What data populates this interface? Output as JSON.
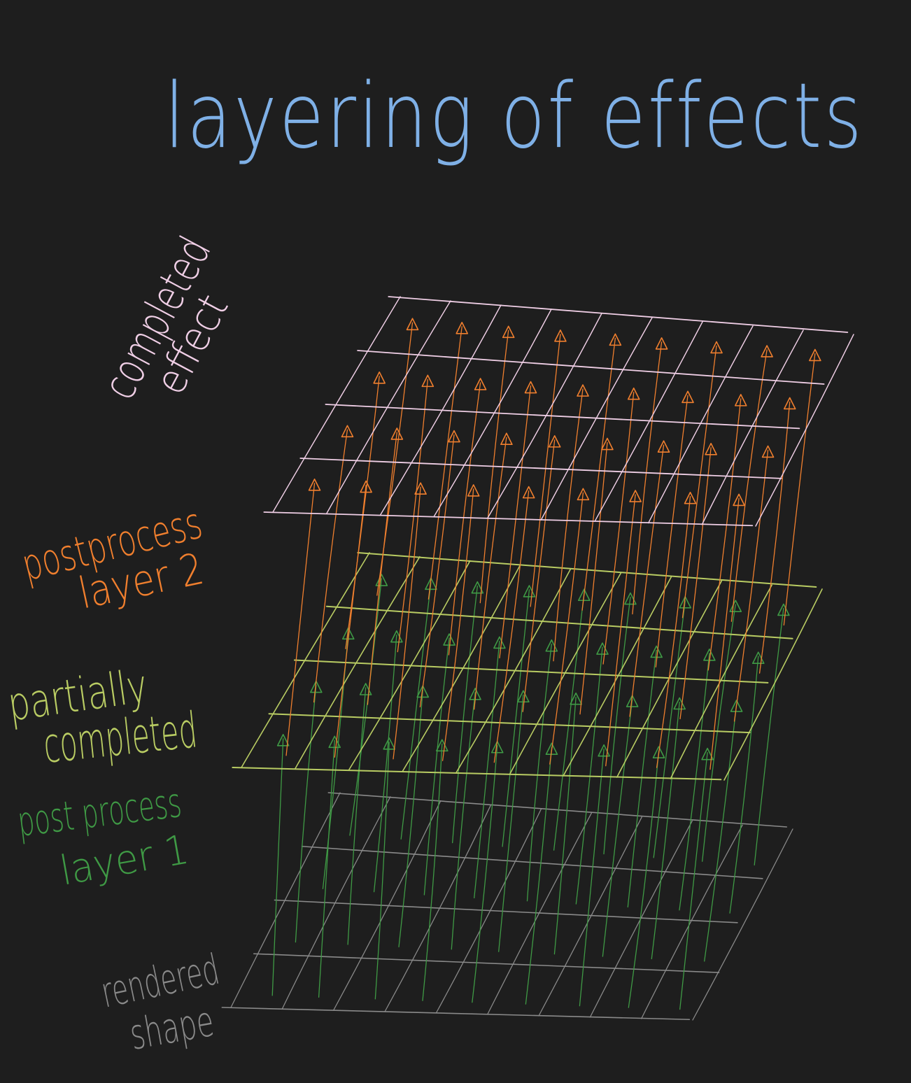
{
  "diagram": {
    "title": "layering of effects",
    "layers": [
      {
        "id": "completed",
        "label_lines": [
          "completed",
          "effect"
        ],
        "color": "#f0cfe6",
        "kind": "plane"
      },
      {
        "id": "post2",
        "label_lines": [
          "postprocess",
          "layer 2"
        ],
        "color": "#f07f2e",
        "kind": "arrows"
      },
      {
        "id": "partial",
        "label_lines": [
          "partially",
          "completed"
        ],
        "color": "#b9cc63",
        "kind": "plane"
      },
      {
        "id": "post1",
        "label_lines": [
          "post process",
          "layer 1"
        ],
        "color": "#3f9a45",
        "kind": "arrows"
      },
      {
        "id": "rendered",
        "label_lines": [
          "rendered",
          "shape"
        ],
        "color": "#8a8a8a",
        "kind": "plane"
      }
    ],
    "colors": {
      "background": "#1e1e1e",
      "title": "#7fb0e6"
    }
  }
}
